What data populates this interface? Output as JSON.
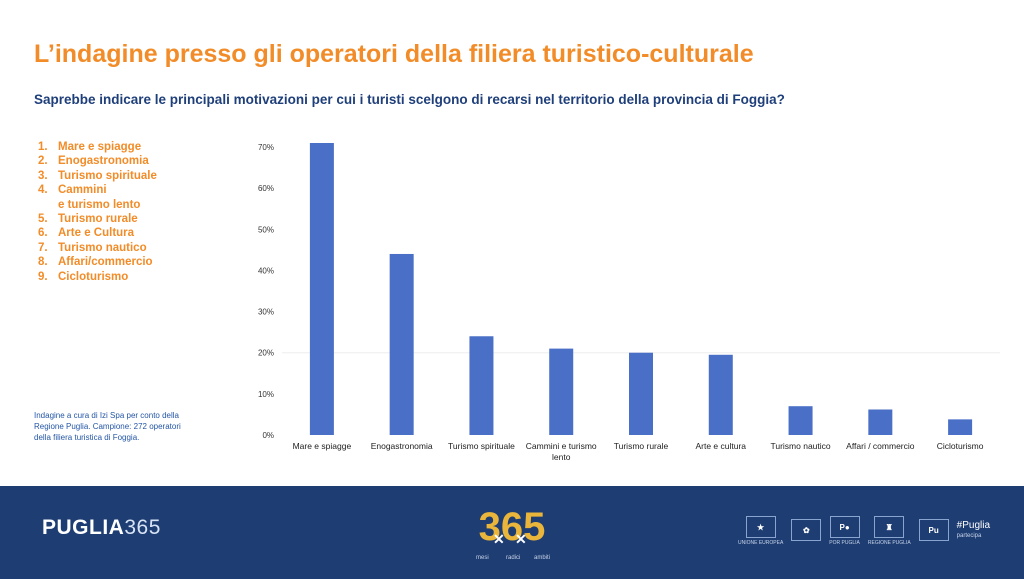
{
  "header": {
    "title": "L’indagine presso gli operatori della filiera turistico-culturale",
    "question": "Saprebbe indicare le principali motivazioni per cui i turisti scelgono di recarsi nel territorio della provincia di Foggia?"
  },
  "ranking": [
    {
      "num": "1.",
      "label": "Mare e spiagge"
    },
    {
      "num": "2.",
      "label": "Enogastronomia"
    },
    {
      "num": "3.",
      "label": "Turismo spirituale"
    },
    {
      "num": "4.",
      "label": "Cammini\n e turismo lento"
    },
    {
      "num": "5.",
      "label": "Turismo rurale"
    },
    {
      "num": "6.",
      "label": "Arte e Cultura"
    },
    {
      "num": "7.",
      "label": "Turismo nautico"
    },
    {
      "num": "8.",
      "label": "Affari/commercio"
    },
    {
      "num": "9.",
      "label": "Cicloturismo"
    }
  ],
  "note": "Indagine a cura di Izi Spa per conto della  Regione Puglia. Campione: 272 operatori della filiera turistica di Foggia.",
  "chart_data": {
    "type": "bar",
    "categories": [
      "Mare e spiagge",
      "Enogastronomia",
      "Turismo spirituale",
      "Cammini e turismo lento",
      "Turismo rurale",
      "Arte e cultura",
      "Turismo nautico",
      "Affari / commercio",
      "Cicloturismo"
    ],
    "values": [
      71,
      44,
      24,
      21,
      20,
      19.5,
      7,
      6.2,
      3.8
    ],
    "ylim": [
      0,
      70
    ],
    "yticks": [
      "0%",
      "10%",
      "20%",
      "30%",
      "40%",
      "50%",
      "60%",
      "70%"
    ],
    "grid": false,
    "bar_color": "#4a6fc6",
    "title": "",
    "xlabel": "",
    "ylabel": ""
  },
  "footer": {
    "brand_bold": "PUGLIA",
    "brand_num": "365",
    "logo_text": "365",
    "logo_sub": [
      "mesi",
      "radici",
      "ambiti"
    ],
    "partners": [
      {
        "label": "UNIONE EUROPEA",
        "glyph": "★"
      },
      {
        "label": "",
        "glyph": "✿"
      },
      {
        "label": "POR PUGLIA",
        "glyph": "P●"
      },
      {
        "label": "REGIONE PUGLIA",
        "glyph": "♜"
      },
      {
        "label": "",
        "glyph": "Pu"
      }
    ],
    "partecipa_main": "#Puglia",
    "partecipa_sub": "partecipa"
  }
}
